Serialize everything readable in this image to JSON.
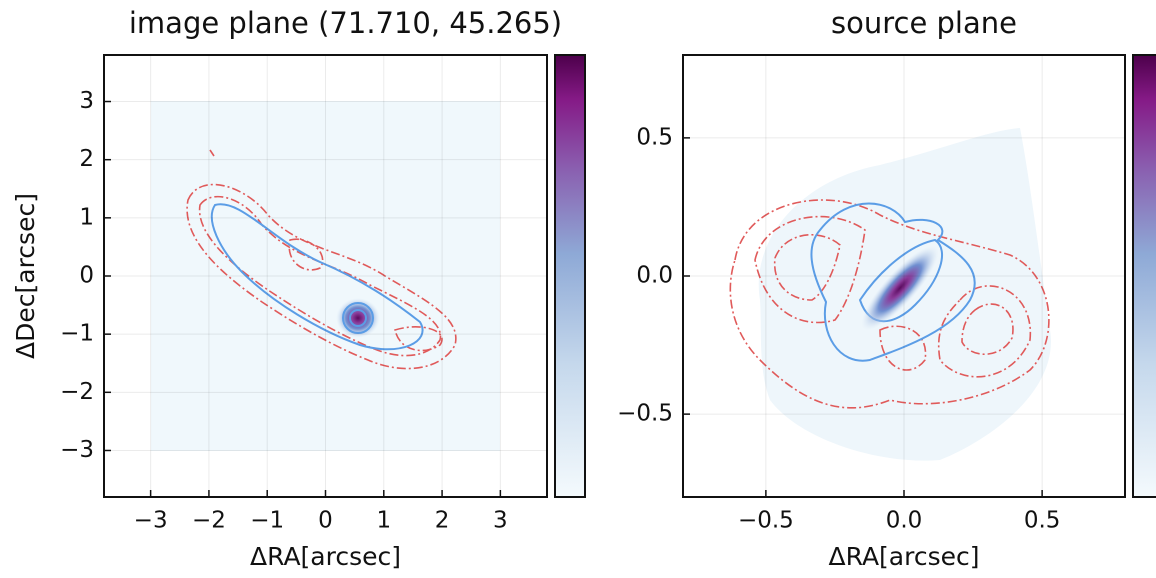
{
  "chart_data": [
    {
      "type": "image",
      "title": "image plane (71.710, 45.265)",
      "xlabel": "ΔRA[arcsec]",
      "ylabel": "ΔDec[arcsec]",
      "xlim": [
        -3.8,
        3.8
      ],
      "ylim": [
        -3.8,
        3.8
      ],
      "xticks": [
        {
          "value": -3,
          "label": "−3"
        },
        {
          "value": -2,
          "label": "−2"
        },
        {
          "value": -1,
          "label": "−1"
        },
        0,
        1,
        2,
        3
      ],
      "yticks": [
        {
          "value": -3,
          "label": "−3"
        },
        {
          "value": -2,
          "label": "−2"
        },
        {
          "value": -1,
          "label": "−1"
        },
        0,
        1,
        2,
        3
      ],
      "grid": true
    },
    {
      "type": "image",
      "title": "source plane",
      "xlabel": "ΔRA[arcsec]",
      "xlim": [
        -0.8,
        0.8
      ],
      "ylim": [
        -0.8,
        0.8
      ],
      "xticks": [
        {
          "value": -0.5,
          "label": "−0.5"
        },
        {
          "value": 0,
          "label": "0.0"
        },
        0.5
      ],
      "yticks": [
        {
          "value": -0.5,
          "label": "−0.5"
        },
        {
          "value": 0,
          "label": "0.0"
        },
        0.5
      ],
      "grid": true
    }
  ]
}
